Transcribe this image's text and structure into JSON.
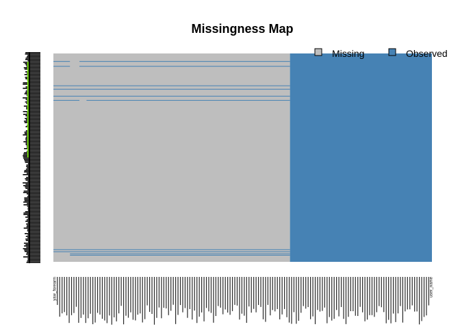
{
  "chart_data": {
    "type": "heatmap",
    "title": "Missingness Map",
    "legend_position": "top-right",
    "colors": {
      "missing": "#BEBEBE",
      "observed": "#4682B4",
      "row_labels": "#000000",
      "row_label_accent": "#7CFC00"
    },
    "legend": [
      {
        "name": "Missing",
        "key": "missing"
      },
      {
        "name": "Observed",
        "key": "observed"
      }
    ],
    "n_columns": 160,
    "n_rows": 300,
    "missing_block": {
      "from_column": 1,
      "to_column": 100,
      "status": "missing"
    },
    "observed_block": {
      "from_column": 101,
      "to_column": 160,
      "status": "observed"
    },
    "fully_observed_rows": [
      {
        "row": 12,
        "gap_columns": [
          8,
          11
        ]
      },
      {
        "row": 19,
        "gap_columns": [
          8,
          11
        ]
      },
      {
        "row": 47
      },
      {
        "row": 52
      },
      {
        "row": 62
      },
      {
        "row": 68,
        "gap_columns": [
          12,
          14
        ]
      },
      {
        "row": 283
      },
      {
        "row": 286
      },
      {
        "row": 289,
        "start_column": 8
      },
      {
        "row": 291,
        "start_column": 8
      }
    ],
    "x_tick_labels": [
      "yaw_forearm",
      "user_name"
    ]
  }
}
